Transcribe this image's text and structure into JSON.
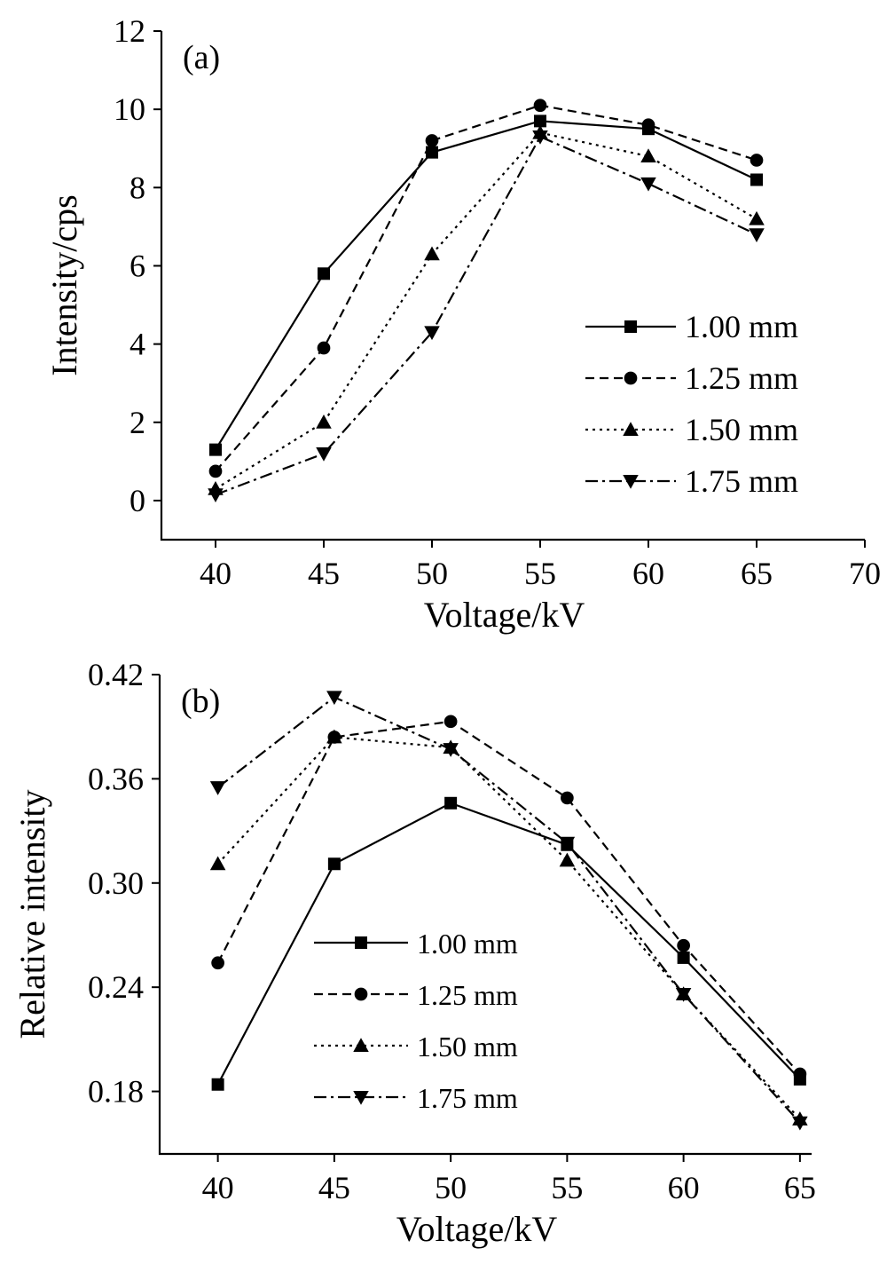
{
  "chart_data": [
    {
      "type": "line",
      "panel_label": "(a)",
      "xlabel": "Voltage/kV",
      "ylabel": "Intensity/cps",
      "xlim": [
        37.5,
        70
      ],
      "ylim": [
        -1,
        12
      ],
      "xticks": [
        40,
        45,
        50,
        55,
        60,
        65,
        70
      ],
      "yticks": [
        0,
        2,
        4,
        6,
        8,
        10,
        12
      ],
      "x": [
        40,
        45,
        50,
        55,
        60,
        65
      ],
      "legend_position": "right",
      "series": [
        {
          "name": "1.00 mm",
          "marker": "square",
          "dash": "solid",
          "values": [
            1.3,
            5.8,
            8.9,
            9.7,
            9.5,
            8.2
          ]
        },
        {
          "name": "1.25 mm",
          "marker": "circle",
          "dash": "dashed",
          "values": [
            0.75,
            3.9,
            9.2,
            10.1,
            9.6,
            8.7
          ]
        },
        {
          "name": "1.50 mm",
          "marker": "triangle-up",
          "dash": "dotted",
          "values": [
            0.3,
            2.0,
            6.3,
            9.4,
            8.8,
            7.2
          ]
        },
        {
          "name": "1.75 mm",
          "marker": "triangle-down",
          "dash": "dashdot",
          "values": [
            0.15,
            1.2,
            4.3,
            9.3,
            8.1,
            6.8
          ]
        }
      ]
    },
    {
      "type": "line",
      "panel_label": "(b)",
      "xlabel": "Voltage/kV",
      "ylabel": "Relative intensity",
      "xlim": [
        37.5,
        65.5
      ],
      "ylim": [
        0.144,
        0.42
      ],
      "xticks": [
        40,
        45,
        50,
        55,
        60,
        65
      ],
      "yticks": [
        0.18,
        0.24,
        0.3,
        0.36,
        0.42
      ],
      "ytick_labels": [
        "0.18",
        "0.24",
        "0.30",
        "0.36",
        "0.42"
      ],
      "x": [
        40,
        45,
        50,
        55,
        60,
        65
      ],
      "legend_position": "lower-left",
      "series": [
        {
          "name": "1.00 mm",
          "marker": "square",
          "dash": "solid",
          "values": [
            0.184,
            0.311,
            0.346,
            0.322,
            0.257,
            0.187
          ]
        },
        {
          "name": "1.25 mm",
          "marker": "circle",
          "dash": "dashed",
          "values": [
            0.254,
            0.384,
            0.393,
            0.349,
            0.264,
            0.19
          ]
        },
        {
          "name": "1.50 mm",
          "marker": "triangle-up",
          "dash": "dotted",
          "values": [
            0.311,
            0.384,
            0.378,
            0.313,
            0.236,
            0.164
          ]
        },
        {
          "name": "1.75 mm",
          "marker": "triangle-down",
          "dash": "dashdot",
          "values": [
            0.355,
            0.407,
            0.377,
            0.323,
            0.236,
            0.162
          ]
        }
      ]
    }
  ]
}
